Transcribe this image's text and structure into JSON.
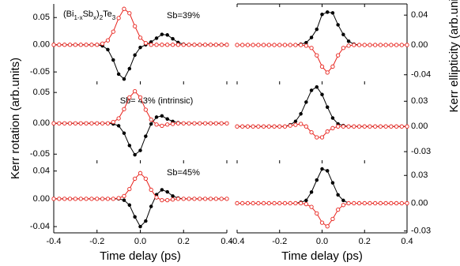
{
  "chart_data": [
    {
      "type": "line",
      "annotations": [
        "Sb=39%"
      ],
      "formula_parts": [
        "(Bi",
        "1-x",
        "Sb",
        "x",
        ")",
        "2",
        "Te",
        "3"
      ],
      "x": [
        -0.4,
        -0.375,
        -0.35,
        -0.325,
        -0.3,
        -0.275,
        -0.25,
        -0.225,
        -0.2,
        -0.175,
        -0.15,
        -0.125,
        -0.1,
        -0.075,
        -0.05,
        -0.025,
        0,
        0.025,
        0.05,
        0.075,
        0.1,
        0.125,
        0.15,
        0.175,
        0.2,
        0.225,
        0.25,
        0.275,
        0.3,
        0.325,
        0.35,
        0.375,
        0.4
      ],
      "series": [
        {
          "color": "#000000",
          "marker": "filled",
          "values": [
            0,
            0,
            0,
            0,
            0,
            0,
            0,
            0,
            0,
            -0.002,
            -0.009,
            -0.028,
            -0.054,
            -0.063,
            -0.044,
            -0.019,
            -0.005,
            0,
            0.005,
            0.012,
            0.019,
            0.018,
            0.011,
            0.004,
            0.001,
            0,
            0,
            0,
            0,
            0,
            0,
            0,
            0
          ]
        },
        {
          "color": "#e8221c",
          "marker": "open",
          "values": [
            0,
            0,
            0,
            0,
            0,
            0,
            0,
            0,
            0,
            0.002,
            0.008,
            0.024,
            0.049,
            0.066,
            0.058,
            0.034,
            0.013,
            0.003,
            0,
            0,
            0,
            0,
            0,
            0,
            0,
            0,
            0,
            0,
            0,
            0,
            0,
            0,
            0
          ]
        }
      ],
      "xlim": [
        -0.4,
        0.4
      ],
      "xticks": [
        -0.4,
        -0.2,
        0,
        0.2,
        0.4
      ],
      "show_xtick_labels": false,
      "ylim": [
        -0.073,
        0.075
      ],
      "yticks": [
        -0.05,
        {
          "value": 0,
          "label": "0.00"
        },
        0.05
      ],
      "yaxis_side": "left"
    },
    {
      "type": "line",
      "annotations": [
        "Sb= 43% (intrinsic)"
      ],
      "ylabel": "Kerr rotation (arb.units)",
      "x": [
        -0.4,
        -0.375,
        -0.35,
        -0.325,
        -0.3,
        -0.275,
        -0.25,
        -0.225,
        -0.2,
        -0.175,
        -0.15,
        -0.125,
        -0.1,
        -0.075,
        -0.05,
        -0.025,
        0,
        0.025,
        0.05,
        0.075,
        0.1,
        0.125,
        0.15,
        0.175,
        0.2,
        0.225,
        0.25,
        0.275,
        0.3,
        0.325,
        0.35,
        0.375,
        0.4
      ],
      "series": [
        {
          "color": "#000000",
          "marker": "filled",
          "values": [
            0,
            0,
            0,
            0,
            0,
            0,
            0,
            0,
            0,
            0,
            0,
            -0.001,
            -0.004,
            -0.016,
            -0.036,
            -0.051,
            -0.044,
            -0.021,
            -0.001,
            0.01,
            0.012,
            0.007,
            0.003,
            0.001,
            0,
            0,
            0,
            0,
            0,
            0,
            0,
            0,
            0
          ]
        },
        {
          "color": "#e8221c",
          "marker": "open",
          "values": [
            0,
            0,
            0,
            0,
            0,
            0,
            0,
            0,
            0,
            0,
            0,
            0.002,
            0.008,
            0.023,
            0.042,
            0.052,
            0.042,
            0.022,
            0.006,
            -0.002,
            -0.004,
            -0.002,
            -0.001,
            0,
            0,
            0,
            0,
            0,
            0,
            0,
            0,
            0,
            0
          ]
        }
      ],
      "xlim": [
        -0.4,
        0.4
      ],
      "xticks": [
        -0.4,
        -0.2,
        0,
        0.2,
        0.4
      ],
      "show_xtick_labels": false,
      "ylim": [
        -0.065,
        0.063
      ],
      "yticks": [
        -0.05,
        {
          "value": 0,
          "label": "0.00"
        },
        0.05
      ],
      "yaxis_side": "left"
    },
    {
      "type": "line",
      "annotations": [
        "Sb=45%"
      ],
      "xlabel": "Time delay (ps)",
      "x": [
        -0.4,
        -0.375,
        -0.35,
        -0.325,
        -0.3,
        -0.275,
        -0.25,
        -0.225,
        -0.2,
        -0.175,
        -0.15,
        -0.125,
        -0.1,
        -0.075,
        -0.05,
        -0.025,
        0,
        0.025,
        0.05,
        0.075,
        0.1,
        0.125,
        0.15,
        0.175,
        0.2,
        0.225,
        0.25,
        0.275,
        0.3,
        0.325,
        0.35,
        0.375,
        0.4
      ],
      "series": [
        {
          "color": "#000000",
          "marker": "filled",
          "values": [
            0,
            0,
            0,
            0,
            0,
            0,
            0,
            0,
            0,
            0,
            0,
            0,
            0,
            -0.002,
            -0.009,
            -0.026,
            -0.04,
            -0.032,
            -0.011,
            0.006,
            0.013,
            0.01,
            0.004,
            0.001,
            0,
            0,
            0,
            0,
            0,
            0,
            0,
            0,
            0
          ]
        },
        {
          "color": "#e8221c",
          "marker": "open",
          "values": [
            0,
            0,
            0,
            0,
            0,
            0,
            0,
            0,
            0,
            0,
            0,
            0,
            0.001,
            0.004,
            0.014,
            0.029,
            0.037,
            0.029,
            0.013,
            0.002,
            -0.002,
            -0.002,
            -0.001,
            0,
            0,
            0,
            0,
            0,
            0,
            0,
            0,
            0,
            0
          ]
        }
      ],
      "xlim": [
        -0.4,
        0.4
      ],
      "xticks": [
        -0.4,
        -0.2,
        {
          "value": 0,
          "label": "0.0"
        },
        0.2,
        0.4
      ],
      "show_xtick_labels": true,
      "ylim": [
        -0.049,
        0.051
      ],
      "yticks": [
        -0.04,
        {
          "value": 0,
          "label": "0.00"
        },
        0.04
      ],
      "yaxis_side": "left"
    },
    {
      "type": "line",
      "x": [
        -0.4,
        -0.375,
        -0.35,
        -0.325,
        -0.3,
        -0.275,
        -0.25,
        -0.225,
        -0.2,
        -0.175,
        -0.15,
        -0.125,
        -0.1,
        -0.075,
        -0.05,
        -0.025,
        0,
        0.025,
        0.05,
        0.075,
        0.1,
        0.125,
        0.15,
        0.175,
        0.2,
        0.225,
        0.25,
        0.275,
        0.3,
        0.325,
        0.35,
        0.375,
        0.4
      ],
      "series": [
        {
          "color": "#000000",
          "marker": "filled",
          "values": [
            0,
            0,
            0,
            0,
            0,
            0,
            0,
            0,
            0,
            0,
            0,
            0,
            0.001,
            0.003,
            0.01,
            0.021,
            0.041,
            0.044,
            0.043,
            0.027,
            0.014,
            0.005,
            0.001,
            0,
            0,
            0,
            0,
            0,
            0,
            0,
            0,
            0,
            0
          ]
        },
        {
          "color": "#e8221c",
          "marker": "open",
          "values": [
            0,
            0,
            0,
            0,
            0,
            0,
            0,
            0,
            0,
            0,
            0,
            0,
            0,
            -0.001,
            -0.004,
            -0.014,
            -0.029,
            -0.037,
            -0.029,
            -0.014,
            -0.004,
            -0.001,
            0,
            0,
            0,
            0,
            0,
            0,
            0,
            0,
            0,
            0,
            0
          ]
        }
      ],
      "xlim": [
        -0.4,
        0.4
      ],
      "xticks": [
        -0.4,
        -0.2,
        0,
        0.2,
        0.4
      ],
      "show_xtick_labels": false,
      "ylim": [
        -0.053,
        0.055
      ],
      "yticks": [
        -0.04,
        {
          "value": 0,
          "label": "0.00"
        },
        0.04
      ],
      "yaxis_side": "right"
    },
    {
      "type": "line",
      "ylabel": "Kerr ellipticity (arb.units)",
      "x": [
        -0.4,
        -0.375,
        -0.35,
        -0.325,
        -0.3,
        -0.275,
        -0.25,
        -0.225,
        -0.2,
        -0.175,
        -0.15,
        -0.125,
        -0.1,
        -0.075,
        -0.05,
        -0.025,
        0,
        0.025,
        0.05,
        0.075,
        0.1,
        0.125,
        0.15,
        0.175,
        0.2,
        0.225,
        0.25,
        0.275,
        0.3,
        0.325,
        0.35,
        0.375,
        0.4
      ],
      "series": [
        {
          "color": "#000000",
          "marker": "filled",
          "values": [
            0,
            0,
            0,
            0,
            0,
            0,
            0,
            0,
            0,
            0,
            0.002,
            0.006,
            0.015,
            0.029,
            0.043,
            0.047,
            0.038,
            0.023,
            0.01,
            0.003,
            0.001,
            0,
            0,
            0,
            0,
            0,
            0,
            0,
            0,
            0,
            0,
            0,
            0
          ]
        },
        {
          "color": "#e8221c",
          "marker": "open",
          "values": [
            0,
            0,
            0,
            0,
            0,
            0,
            0,
            0,
            0,
            0,
            0.001,
            0.002,
            0.003,
            0,
            -0.007,
            -0.013,
            -0.013,
            -0.006,
            -0.002,
            0,
            0,
            0,
            0,
            0,
            0,
            0,
            0,
            0,
            0,
            0,
            0,
            0,
            0
          ]
        }
      ],
      "xlim": [
        -0.4,
        0.4
      ],
      "xticks": [
        -0.4,
        -0.2,
        0,
        0.2,
        0.4
      ],
      "show_xtick_labels": false,
      "ylim": [
        -0.044,
        0.05
      ],
      "yticks": [
        -0.03,
        {
          "value": 0,
          "label": "0.00"
        },
        0.03
      ],
      "yaxis_side": "right"
    },
    {
      "type": "line",
      "xlabel": "Time delay (ps)",
      "x": [
        -0.4,
        -0.375,
        -0.35,
        -0.325,
        -0.3,
        -0.275,
        -0.25,
        -0.225,
        -0.2,
        -0.175,
        -0.15,
        -0.125,
        -0.1,
        -0.075,
        -0.05,
        -0.025,
        0,
        0.025,
        0.05,
        0.075,
        0.1,
        0.125,
        0.15,
        0.175,
        0.2,
        0.225,
        0.25,
        0.275,
        0.3,
        0.325,
        0.35,
        0.375,
        0.4
      ],
      "series": [
        {
          "color": "#000000",
          "marker": "filled",
          "values": [
            0,
            0,
            0,
            0,
            0,
            0,
            0,
            0,
            0,
            0,
            0,
            0,
            0.001,
            0.003,
            0.012,
            0.025,
            0.037,
            0.035,
            0.022,
            0.009,
            0.003,
            0,
            0,
            0,
            0,
            0,
            0,
            0,
            0,
            0,
            0,
            0,
            0
          ]
        },
        {
          "color": "#e8221c",
          "marker": "open",
          "values": [
            0,
            0,
            0,
            0,
            0,
            0,
            0,
            0,
            0,
            0,
            0,
            0,
            0,
            -0.001,
            -0.004,
            -0.011,
            -0.021,
            -0.025,
            -0.017,
            -0.007,
            -0.002,
            0,
            0,
            0,
            0,
            0,
            0,
            0,
            0,
            0,
            0,
            0,
            0
          ]
        }
      ],
      "xlim": [
        -0.4,
        0.4
      ],
      "xticks": [
        -0.4,
        -0.2,
        {
          "value": 0,
          "label": "0.0"
        },
        0.2,
        0.4
      ],
      "show_xtick_labels": true,
      "ylim": [
        -0.032,
        0.043
      ],
      "yticks": [
        -0.03,
        {
          "value": 0,
          "label": "0.00"
        },
        0.03
      ],
      "yaxis_side": "right"
    }
  ]
}
